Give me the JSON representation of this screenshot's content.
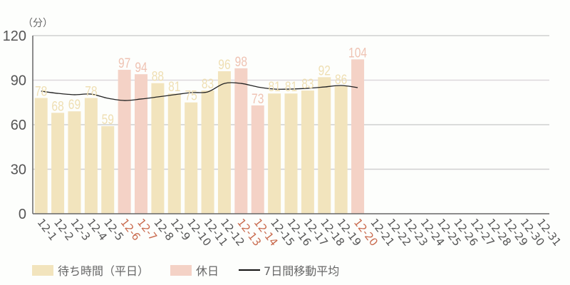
{
  "chart_data": {
    "type": "bar",
    "title": "",
    "ylabel": "（分）",
    "xlabel": "",
    "ylim": [
      0,
      120
    ],
    "yticks": [
      0,
      30,
      60,
      90,
      120
    ],
    "grid": true,
    "legend_position": "bottom",
    "categories": [
      "12-1",
      "12-2",
      "12-3",
      "12-4",
      "12-5",
      "12-6",
      "12-7",
      "12-8",
      "12-9",
      "12-10",
      "12-11",
      "12-12",
      "12-13",
      "12-14",
      "12-15",
      "12-16",
      "12-17",
      "12-18",
      "12-19",
      "12-20",
      "12-21",
      "12-22",
      "12-23",
      "12-24",
      "12-25",
      "12-26",
      "12-27",
      "12-28",
      "12-29",
      "12-30",
      "12-31"
    ],
    "holidays": [
      "12-6",
      "12-7",
      "12-13",
      "12-14",
      "12-20"
    ],
    "series": [
      {
        "name": "待ち時間（平日）/休日",
        "type": "bar",
        "values": [
          78,
          68,
          69,
          78,
          59,
          97,
          94,
          88,
          81,
          75,
          83,
          96,
          98,
          73,
          81,
          81,
          83,
          92,
          86,
          104,
          null,
          null,
          null,
          null,
          null,
          null,
          null,
          null,
          null,
          null,
          null
        ]
      },
      {
        "name": "7日間移動平均",
        "type": "line",
        "values": [
          82.6,
          81.1,
          80.2,
          80.6,
          77.8,
          76.3,
          77.3,
          78.7,
          80.2,
          81.6,
          82.1,
          87.8,
          87.8,
          85.4,
          84.0,
          84.0,
          84.5,
          85.4,
          86.4,
          85.0,
          null,
          null,
          null,
          null,
          null,
          null,
          null,
          null,
          null,
          null,
          null
        ]
      }
    ]
  },
  "legend": {
    "weekday": "待ち時間（平日）",
    "holiday": "休日",
    "moving_average": "7日間移動平均"
  },
  "colors": {
    "weekday_bar": "#f2e4bd",
    "holiday_bar": "#f4d2c6",
    "weekday_label": "#efdfb3",
    "holiday_label": "#efc3b3",
    "holiday_tick": "#c8694c",
    "tick": "#555555",
    "grid": "#d0d0d0",
    "grid_mid": "#ddd8dc",
    "axis": "#666666",
    "line": "#222222"
  }
}
